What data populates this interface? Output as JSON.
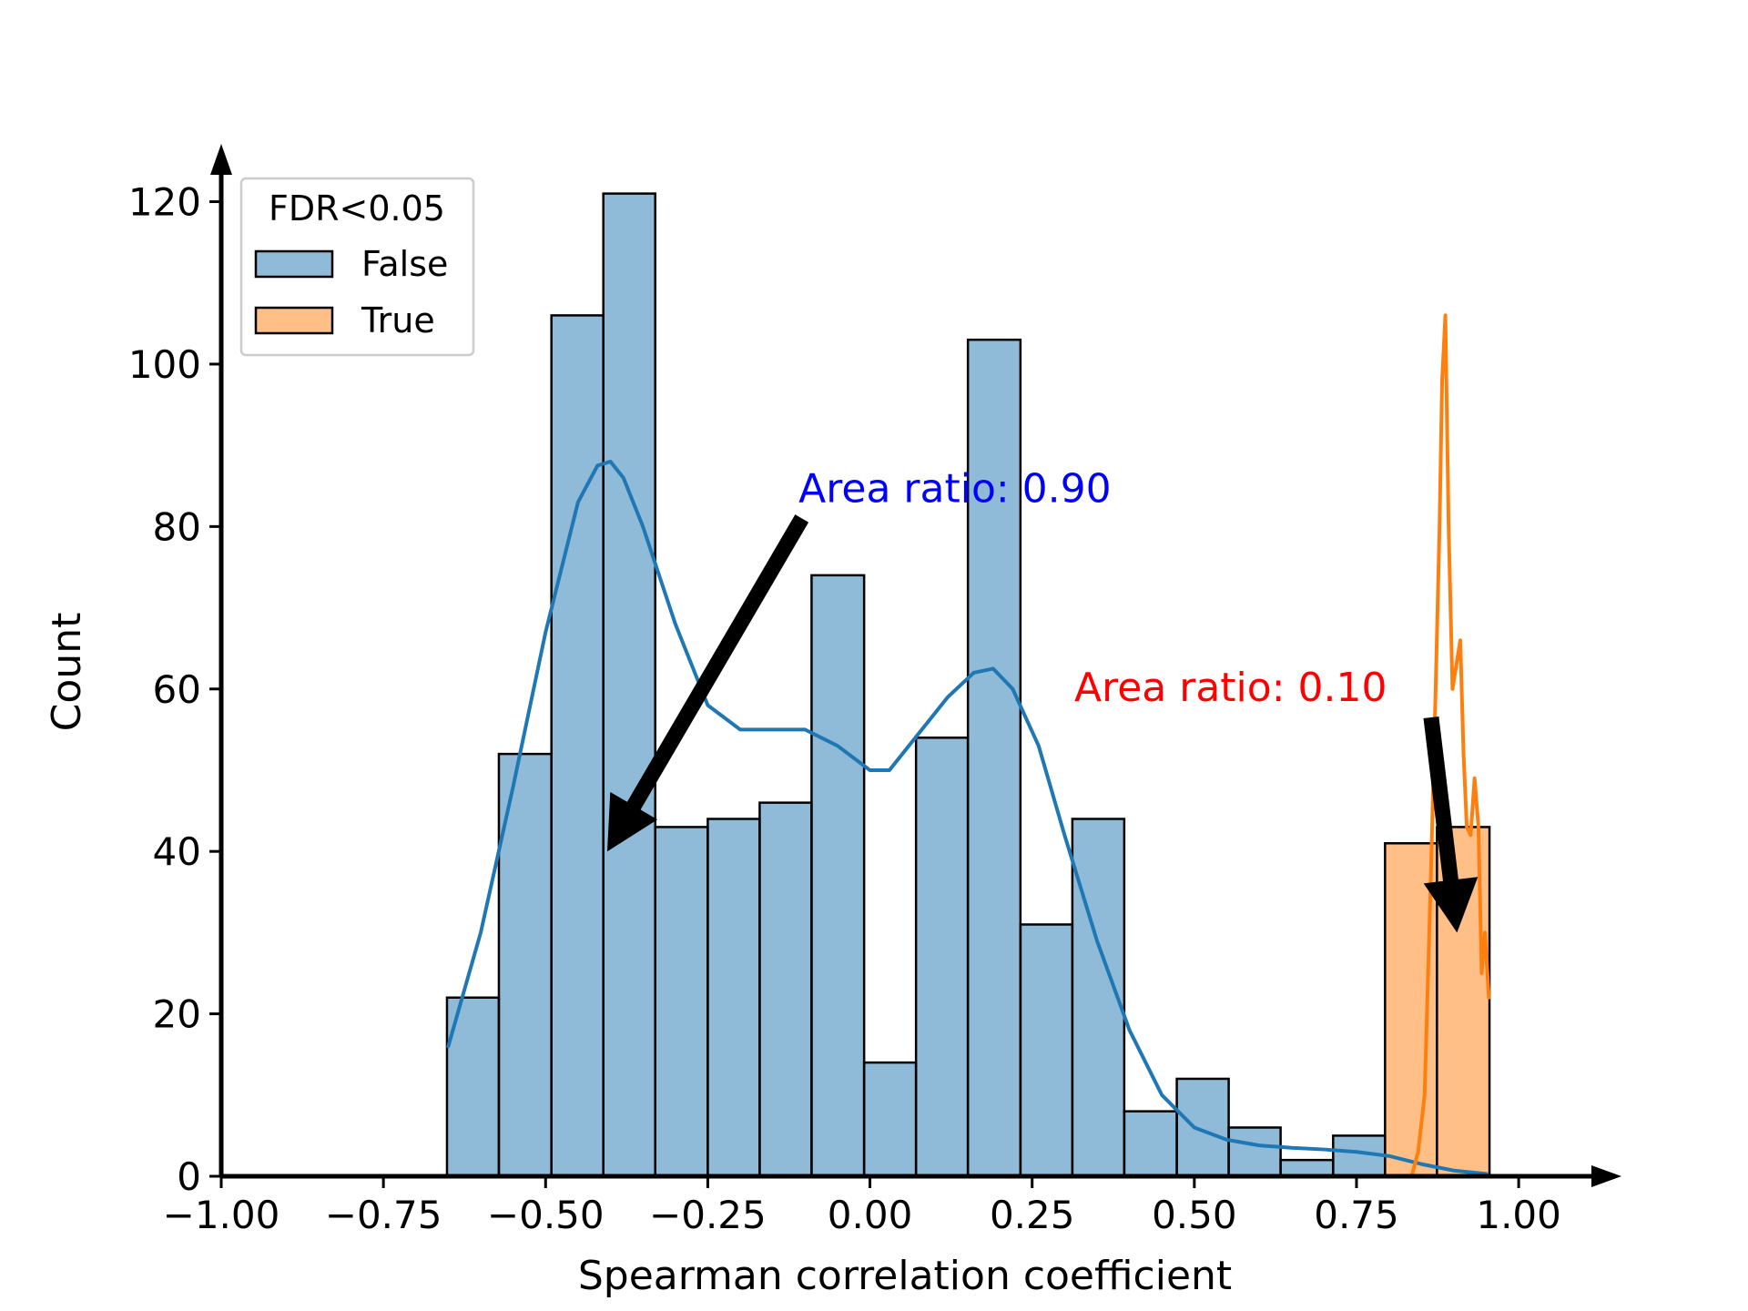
{
  "chart_data": {
    "type": "bar",
    "title": "",
    "xlabel": "Spearman correlation coefficient",
    "ylabel": "Count",
    "xlim": [
      -1.0,
      1.15
    ],
    "ylim": [
      0,
      126
    ],
    "xticks": [
      -1.0,
      -0.75,
      -0.5,
      -0.25,
      0.0,
      0.25,
      0.5,
      0.75,
      1.0
    ],
    "xtick_labels": [
      "−1.00",
      "−0.75",
      "−0.50",
      "−0.25",
      "0.00",
      "0.25",
      "0.50",
      "0.75",
      "1.00"
    ],
    "yticks": [
      0,
      20,
      40,
      60,
      80,
      100,
      120
    ],
    "ytick_labels": [
      "0",
      "20",
      "40",
      "60",
      "80",
      "100",
      "120"
    ],
    "grid": false,
    "legend": {
      "title": "FDR<0.05",
      "placement": "top-left",
      "entries": [
        {
          "label": "False",
          "color": "#1f77b4"
        },
        {
          "label": "True",
          "color": "#ff7f0e"
        }
      ]
    },
    "bin_edges": [
      -0.652,
      -0.572,
      -0.491,
      -0.411,
      -0.331,
      -0.25,
      -0.17,
      -0.09,
      -0.009,
      0.071,
      0.151,
      0.232,
      0.312,
      0.392,
      0.473,
      0.553,
      0.633,
      0.714,
      0.794,
      0.874,
      0.955
    ],
    "series": [
      {
        "name": "False",
        "color": "#1f77b4",
        "values": [
          22,
          52,
          106,
          121,
          43,
          44,
          46,
          74,
          14,
          54,
          103,
          31,
          44,
          8,
          12,
          6,
          2,
          5,
          0,
          0
        ],
        "kde": {
          "x": [
            -0.65,
            -0.6,
            -0.55,
            -0.5,
            -0.45,
            -0.42,
            -0.4,
            -0.38,
            -0.35,
            -0.3,
            -0.25,
            -0.2,
            -0.15,
            -0.1,
            -0.05,
            0.0,
            0.03,
            0.07,
            0.12,
            0.16,
            0.19,
            0.22,
            0.26,
            0.3,
            0.35,
            0.4,
            0.45,
            0.5,
            0.55,
            0.6,
            0.65,
            0.7,
            0.75,
            0.8,
            0.85,
            0.9,
            0.95
          ],
          "y": [
            16,
            30,
            48,
            67,
            83,
            87.5,
            88,
            86,
            80,
            68,
            58,
            55,
            55,
            55,
            53,
            50,
            50,
            54,
            59,
            62,
            62.5,
            60,
            53,
            42,
            29,
            18,
            10,
            6,
            4.5,
            3.8,
            3.5,
            3.3,
            3.0,
            2.5,
            1.5,
            0.7,
            0.3
          ]
        }
      },
      {
        "name": "True",
        "color": "#ff7f0e",
        "values": [
          0,
          0,
          0,
          0,
          0,
          0,
          0,
          0,
          0,
          0,
          0,
          0,
          0,
          0,
          0,
          0,
          0,
          0,
          41,
          43
        ],
        "kde": {
          "x": [
            0.835,
            0.845,
            0.855,
            0.865,
            0.872,
            0.878,
            0.882,
            0.887,
            0.892,
            0.898,
            0.904,
            0.91,
            0.915,
            0.92,
            0.926,
            0.932,
            0.938,
            0.943,
            0.948,
            0.954
          ],
          "y": [
            0,
            3,
            10,
            38,
            60,
            80,
            98,
            106,
            80,
            60,
            63,
            66,
            52,
            43,
            42,
            49,
            43,
            25,
            30,
            22
          ]
        }
      }
    ],
    "annotations": [
      {
        "text": "Area ratio: 0.90",
        "color": "#0000ff",
        "x": -0.11,
        "y": 83,
        "arrow_to": [
          -0.405,
          40
        ],
        "arrow_from": [
          -0.105,
          81
        ]
      },
      {
        "text": "Area ratio: 0.10",
        "color": "#ff0000",
        "x": 0.315,
        "y": 58.5,
        "arrow_to": [
          0.905,
          30
        ],
        "arrow_from": [
          0.865,
          56.5
        ]
      }
    ]
  }
}
